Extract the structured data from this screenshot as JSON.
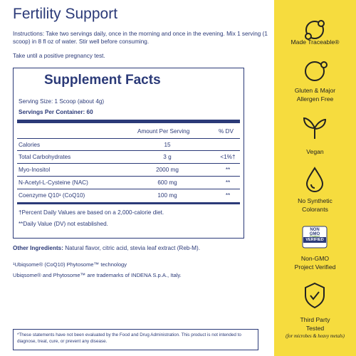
{
  "header": {
    "title": "Fertility Support"
  },
  "instructions": {
    "label": "Instructions:",
    "text": "Take two servings daily, once in the morning and once in the evening. Mix 1 serving (1 scoop) in 8 fl oz of water. Stir well before consuming.",
    "note": "Take until a positive pregnancy test."
  },
  "facts": {
    "title": "Supplement Facts",
    "serving_size": "Serving Size: 1 Scoop (about 4g)",
    "servings_per_container": "Servings Per Container: 60",
    "columns": [
      "Amount Per Serving",
      "% DV"
    ],
    "rows": [
      {
        "name": "Calories",
        "amount": "15"
      },
      {
        "name": "Total Carbohydrates",
        "amount": "3 g",
        "dv": "<1%†"
      },
      {
        "name": "Myo-Inositol",
        "amount": "2000 mg",
        "dv": "**"
      },
      {
        "name": "N-Acetyl-L-Cysteine (NAC)",
        "amount": "600 mg",
        "dv": "**"
      },
      {
        "name": "Coenzyme Q10¹ (CoQ10)",
        "amount": "100 mg",
        "dv": "**"
      }
    ],
    "footnotes": [
      "†Percent Daily Values are based on a 2,000-calorie diet.",
      "**Daily Value (DV) not established."
    ]
  },
  "ingredients": {
    "label": "Other Ingredients:",
    "text": "Natural flavor, citric acid, stevia leaf extract (Reb-M)."
  },
  "notes": [
    "¹Ubiqsome® (CoQ10) Phytosome™ technology",
    "Ubiqsome® and Phytosome™ are trademarks of  INDENA S.p.A., Italy."
  ],
  "disclaimer": "*These statements have not been evaluated by the Food and Drug Administration. This product is not intended to diagnose, treat, cure, or prevent any disease.",
  "badges": [
    {
      "lines": [
        "Made Traceable®"
      ]
    },
    {
      "lines": [
        "Gluten & Major",
        "Allergen Free"
      ]
    },
    {
      "lines": [
        "Vegan"
      ]
    },
    {
      "lines": [
        "No Synthetic",
        "Colorants"
      ]
    },
    {
      "lines": [
        "Non-GMO",
        "Project Verified"
      ],
      "seal": [
        "NON",
        "GMO",
        "Project",
        "VERIFIED"
      ]
    },
    {
      "lines": [
        "Third Party",
        "Tested"
      ],
      "sub": "(for microbes & heavy metals)"
    }
  ]
}
